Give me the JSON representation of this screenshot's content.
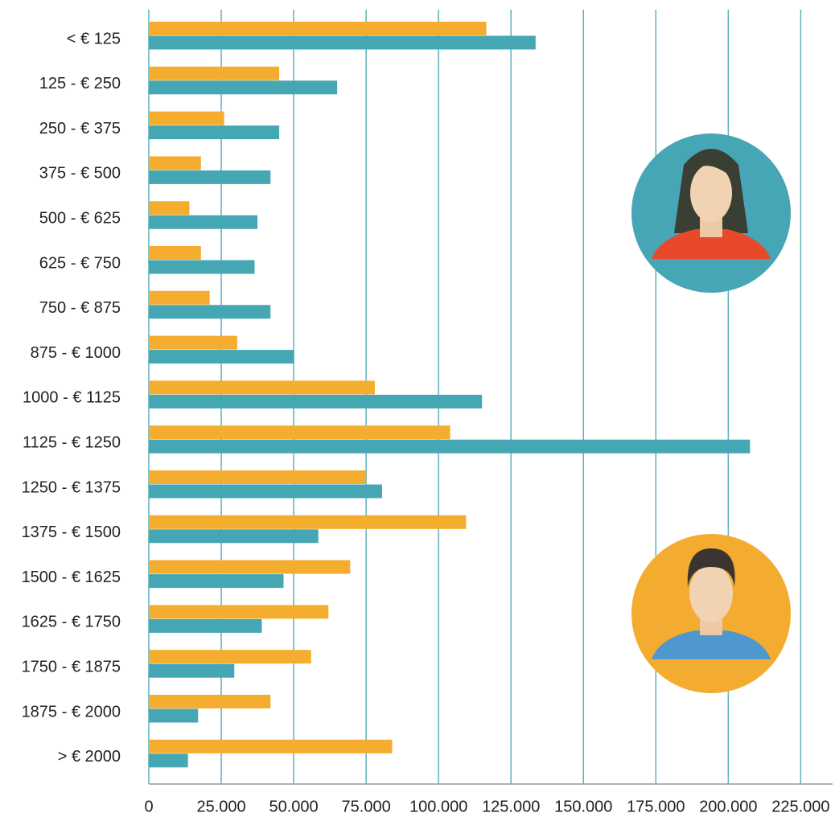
{
  "chart_data": {
    "type": "hbar",
    "categories": [
      "< € 125",
      "125 - € 250",
      "250 - € 375",
      "375 - € 500",
      "500 - € 625",
      "625 - € 750",
      "750 - € 875",
      "875 - € 1000",
      "1000 - € 1125",
      "1125 - € 1250",
      "1250 - € 1375",
      "1375 - € 1500",
      "1500 - € 1625",
      "1625 - € 1750",
      "1750 - € 1875",
      "1875 - € 2000",
      "> € 2000"
    ],
    "series": [
      {
        "color": "#f5ad2f",
        "values": [
          116500,
          45000,
          26000,
          18000,
          14000,
          18000,
          21000,
          30500,
          78000,
          104000,
          75000,
          109500,
          69500,
          62000,
          56000,
          42000,
          84000
        ]
      },
      {
        "color": "#45a6b4",
        "values": [
          133500,
          65000,
          45000,
          42000,
          37500,
          36500,
          42000,
          50000,
          115000,
          207500,
          80500,
          58500,
          46500,
          39000,
          29500,
          17000,
          13500
        ]
      }
    ],
    "xlim": [
      0,
      236000
    ],
    "xticks": [
      0,
      {
        "value": 25000,
        "label": "25.000"
      },
      {
        "value": 50000,
        "label": "50.000"
      },
      {
        "value": 75000,
        "label": "75.000"
      },
      {
        "value": 100000,
        "label": "100.000"
      },
      {
        "value": 125000,
        "label": "125.000"
      },
      {
        "value": 150000,
        "label": "150.000"
      },
      {
        "value": 175000,
        "label": "175.000"
      },
      {
        "value": 200000,
        "label": "200.000"
      },
      {
        "value": 225000,
        "label": "225.000"
      }
    ],
    "grid": true
  }
}
